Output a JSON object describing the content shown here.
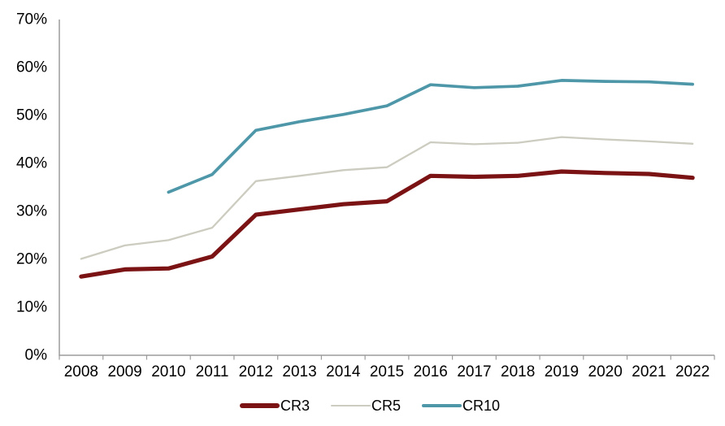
{
  "chart_data": {
    "type": "line",
    "title": "",
    "xlabel": "",
    "ylabel": "",
    "categories": [
      "2008",
      "2009",
      "2010",
      "2011",
      "2012",
      "2013",
      "2014",
      "2015",
      "2016",
      "2017",
      "2018",
      "2019",
      "2020",
      "2021",
      "2022"
    ],
    "series": [
      {
        "name": "CR3",
        "color": "#7B1315",
        "stroke_width": 5.2,
        "values": [
          16.4,
          17.9,
          18.1,
          20.6,
          29.3,
          30.4,
          31.5,
          32.1,
          37.4,
          37.2,
          37.4,
          38.3,
          38.0,
          37.8,
          37.0
        ]
      },
      {
        "name": "CR5",
        "color": "#CDCCC0",
        "stroke_width": 2.3,
        "values": [
          20.1,
          22.9,
          24.0,
          26.6,
          36.3,
          37.4,
          38.6,
          39.2,
          44.4,
          44.0,
          44.3,
          45.5,
          45.0,
          44.6,
          44.1
        ]
      },
      {
        "name": "CR10",
        "color": "#4E97A9",
        "stroke_width": 3.7,
        "values": [
          null,
          null,
          34.0,
          37.7,
          46.9,
          48.7,
          50.2,
          52.0,
          56.4,
          55.8,
          56.1,
          57.3,
          57.1,
          57.0,
          56.5
        ]
      }
    ],
    "ylim": [
      0,
      70
    ],
    "y_tick_labels": [
      "0%",
      "10%",
      "20%",
      "30%",
      "40%",
      "50%",
      "60%",
      "70%"
    ],
    "y_tick_step": 10,
    "grid": false,
    "legend_position": "bottom",
    "axis_color": "#9B9B9B",
    "label_color": "#000000"
  }
}
